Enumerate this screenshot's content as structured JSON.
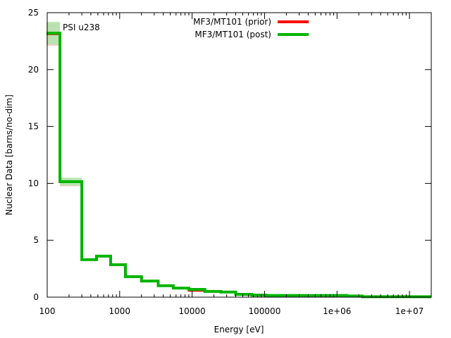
{
  "chart_data": {
    "type": "line",
    "title": "",
    "annotation": "PSI u238",
    "xlabel": "Energy [eV]",
    "ylabel": "Nuclear Data [barns/no-dim]",
    "xscale": "log",
    "xlim": [
      100,
      20000000
    ],
    "ylim": [
      0,
      25
    ],
    "x_ticks": [
      {
        "value": 100,
        "label": "100"
      },
      {
        "value": 1000,
        "label": "1000"
      },
      {
        "value": 10000,
        "label": "10000"
      },
      {
        "value": 100000,
        "label": "100000"
      },
      {
        "value": 1000000,
        "label": "1e+06"
      },
      {
        "value": 10000000,
        "label": "1e+07"
      }
    ],
    "y_ticks": [
      {
        "value": 0,
        "label": "0"
      },
      {
        "value": 5,
        "label": "5"
      },
      {
        "value": 10,
        "label": "10"
      },
      {
        "value": 15,
        "label": "15"
      },
      {
        "value": 20,
        "label": "20"
      },
      {
        "value": 25,
        "label": "25"
      }
    ],
    "grid": false,
    "legend_position": "top-center",
    "bin_edges": [
      98,
      150,
      300,
      480,
      750,
      1200,
      2000,
      3400,
      5500,
      9000,
      15000,
      25000,
      40000,
      67000,
      105000,
      1370000,
      2230000,
      20000000
    ],
    "series": [
      {
        "name": "MF3/MT101 (prior)",
        "color": "#ff0000",
        "band_color": "#f4b4b4",
        "values": [
          23.1,
          10.1,
          3.3,
          3.6,
          2.85,
          1.8,
          1.42,
          1.0,
          0.8,
          0.55,
          0.5,
          0.45,
          0.25,
          0.18,
          0.15,
          0.08,
          0.04
        ],
        "uncertainty": [
          1.0,
          0.35,
          0.1,
          0.1,
          0.08,
          0.05,
          0.04,
          0.03,
          0.02,
          0.02,
          0.02,
          0.02,
          0.01,
          0.01,
          0.01,
          0.01,
          0.01
        ]
      },
      {
        "name": "MF3/MT101 (post)",
        "color": "#00b400",
        "band_color": "#a8e8a8",
        "values": [
          23.2,
          10.15,
          3.3,
          3.6,
          2.85,
          1.8,
          1.42,
          1.0,
          0.8,
          0.68,
          0.5,
          0.45,
          0.25,
          0.18,
          0.15,
          0.1,
          0.04
        ],
        "uncertainty": [
          1.0,
          0.35,
          0.1,
          0.1,
          0.08,
          0.05,
          0.04,
          0.03,
          0.02,
          0.02,
          0.02,
          0.02,
          0.01,
          0.01,
          0.01,
          0.01,
          0.01
        ]
      }
    ]
  }
}
